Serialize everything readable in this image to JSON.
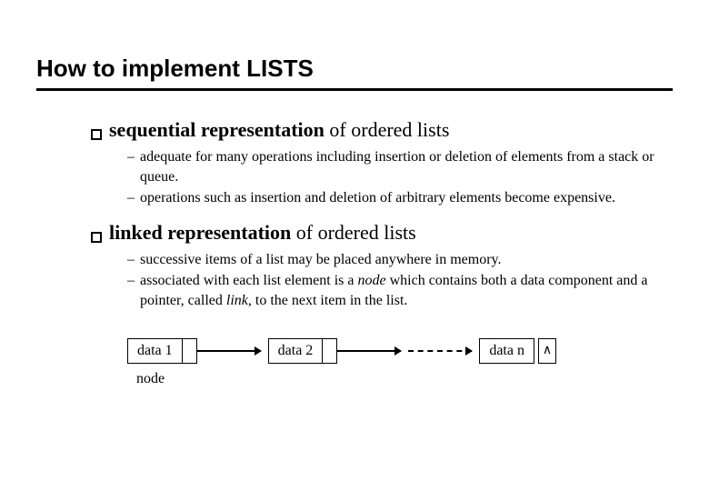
{
  "title": "How to implement LISTS",
  "bullets": [
    {
      "bold": "sequential representation",
      "rest": " of ordered lists",
      "subs": [
        "adequate for many operations including insertion or deletion of elements from a stack or queue.",
        "operations such as insertion and deletion of arbitrary elements become expensive."
      ]
    },
    {
      "bold": "linked representation",
      "rest": " of ordered lists",
      "subs": [
        "successive items of a list may be placed anywhere in memory.",
        "associated with each list element is a <i>node</i> which contains both a data component and a pointer, called <i>link</i>, to the next item in the list."
      ]
    }
  ],
  "diagram": {
    "nodes": [
      "data 1",
      "data 2",
      "data n"
    ],
    "terminal": "∧",
    "label": "node",
    "colors": {
      "line": "#000000",
      "bg": "#ffffff"
    }
  }
}
